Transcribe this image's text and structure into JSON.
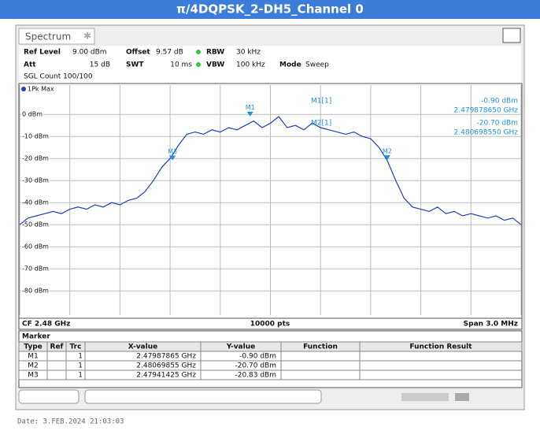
{
  "header": {
    "title": "π/4DQPSK_2-DH5_Channel 0"
  },
  "window": {
    "tab": "Spectrum"
  },
  "settings": {
    "ref_level_label": "Ref Level",
    "ref_level": "9.00 dBm",
    "offset_label": "Offset",
    "offset": "9.57 dB",
    "rbw_label": "RBW",
    "rbw": "30 kHz",
    "att_label": "Att",
    "att": "15 dB",
    "swt_label": "SWT",
    "swt": "10 ms",
    "vbw_label": "VBW",
    "vbw": "100 kHz",
    "mode_label": "Mode",
    "mode": "Sweep",
    "sgl_count": "SGL Count 100/100"
  },
  "chart_data": {
    "type": "line",
    "trace_label": "1Pk Max",
    "x": [
      2.4785,
      2.47855,
      2.4786,
      2.47865,
      2.4787,
      2.47875,
      2.4788,
      2.47885,
      2.4789,
      2.47895,
      2.479,
      2.47905,
      2.4791,
      2.47915,
      2.4792,
      2.47925,
      2.4793,
      2.47935,
      2.4794,
      2.47945,
      2.4795,
      2.47955,
      2.4796,
      2.47965,
      2.4797,
      2.47975,
      2.4798,
      2.47985,
      2.4799,
      2.47995,
      2.48,
      2.48005,
      2.4801,
      2.48015,
      2.4802,
      2.48025,
      2.4803,
      2.48035,
      2.4804,
      2.48045,
      2.4805,
      2.48055,
      2.4806,
      2.48065,
      2.4807,
      2.48075,
      2.4808,
      2.48085,
      2.4809,
      2.48095,
      2.481,
      2.48105,
      2.4811,
      2.48115,
      2.4812,
      2.48125,
      2.4813,
      2.48135,
      2.4814,
      2.48145,
      2.4815
    ],
    "series": [
      {
        "name": "1Pk Max",
        "color": "#1f3fbf",
        "values": [
          -50,
          -47,
          -46,
          -45,
          -44,
          -45,
          -43,
          -42,
          -43,
          -41,
          -42,
          -40,
          -41,
          -39,
          -38,
          -35,
          -30,
          -24,
          -20,
          -14,
          -9,
          -8,
          -9,
          -7,
          -8,
          -6,
          -7,
          -5,
          -3,
          -6,
          -4,
          -1,
          -6,
          -5,
          -7,
          -4,
          -6,
          -7,
          -8,
          -9,
          -8,
          -10,
          -11,
          -15,
          -21,
          -30,
          -38,
          -42,
          -43,
          -44,
          -42,
          -45,
          -44,
          -46,
          -45,
          -46,
          -47,
          -46,
          -48,
          -47,
          -50
        ]
      }
    ],
    "xlim": [
      2.4785,
      2.4815
    ],
    "xticks": [
      2.4785,
      2.4788,
      2.4791,
      2.4794,
      2.4797,
      2.48,
      2.4803,
      2.4806,
      2.4809,
      2.4812,
      2.4815
    ],
    "ylim": [
      -91,
      9
    ],
    "yticks": [
      {
        "value": 0,
        "label": "0 dBm"
      },
      {
        "value": -10,
        "label": "-10 dBm"
      },
      {
        "value": -20,
        "label": "-20 dBm"
      },
      {
        "value": -30,
        "label": "-30 dBm"
      },
      {
        "value": -40,
        "label": "-40 dBm"
      },
      {
        "value": -50,
        "label": "-50 dBm"
      },
      {
        "value": -60,
        "label": "-60 dBm"
      },
      {
        "value": -70,
        "label": "-70 dBm"
      },
      {
        "value": -80,
        "label": "-80 dBm"
      }
    ],
    "grid": true,
    "markers": {
      "names": [
        "M1",
        "M2",
        "M3"
      ],
      "x": [
        2.47987865,
        2.48069855,
        2.47941425
      ],
      "y": [
        -0.9,
        -20.7,
        -20.83
      ],
      "color": "#1f8fe0"
    },
    "readout": [
      {
        "label": "M1[1]",
        "value": "-0.90 dBm",
        "freq": "2.479878650 GHz"
      },
      {
        "label": "M2[1]",
        "value": "-20.70 dBm",
        "freq": "2.480698550 GHz"
      }
    ],
    "cf_label": "CF 2.48 GHz",
    "points_label": "10000 pts",
    "span_label": "Span 3.0 MHz"
  },
  "marker_table": {
    "title": "Marker",
    "columns": [
      "Type",
      "Ref",
      "Trc",
      "X-value",
      "Y-value",
      "Function",
      "Function Result"
    ],
    "rows": [
      [
        "M1",
        "1",
        "2.47987865 GHz",
        "-0.90 dBm"
      ],
      [
        "M2",
        "1",
        "2.48069855 GHz",
        "-20.70 dBm"
      ],
      [
        "M3",
        "1",
        "2.47941425 GHz",
        "-20.83 dBm"
      ]
    ]
  },
  "date": "Date: 3.FEB.2024  21:03:03"
}
